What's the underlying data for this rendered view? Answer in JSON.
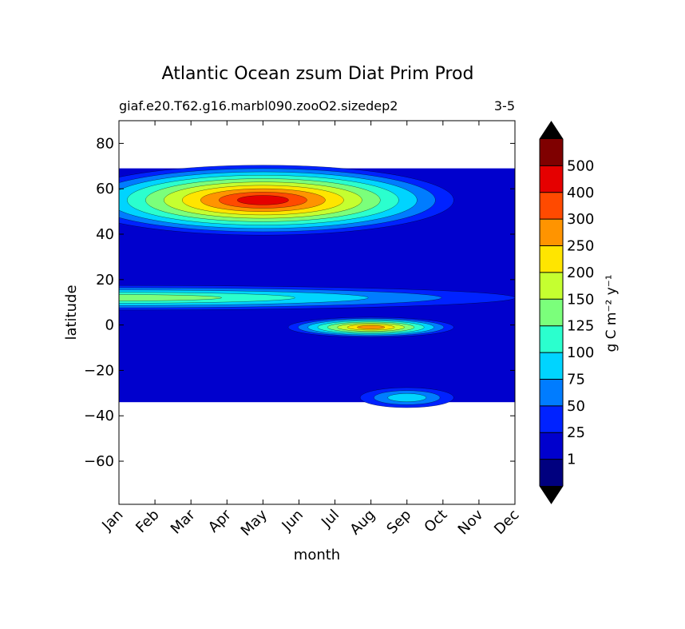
{
  "chart_data": {
    "type": "heatmap",
    "subtype": "filled-contour",
    "title": "Atlantic Ocean zsum Diat Prim Prod",
    "subtitle_left": "giaf.e20.T62.g16.marbl090.zooO2.sizedep2",
    "subtitle_right": "3-5",
    "xlabel": "month",
    "ylabel": "latitude",
    "x_categories": [
      "Jan",
      "Feb",
      "Mar",
      "Apr",
      "May",
      "Jun",
      "Jul",
      "Aug",
      "Sep",
      "Oct",
      "Nov",
      "Dec"
    ],
    "ylim": [
      -79,
      90
    ],
    "yticks": [
      80,
      60,
      40,
      20,
      0,
      -20,
      -40,
      -60
    ],
    "ytick_labels": [
      "80",
      "60",
      "40",
      "20",
      "0",
      "−20",
      "−40",
      "−60"
    ],
    "data_lat_range": [
      -34,
      69
    ],
    "grid": false,
    "colorbar": {
      "label": "g C m⁻² y⁻¹",
      "tick_labels": [
        "1",
        "25",
        "50",
        "75",
        "100",
        "125",
        "150",
        "200",
        "250",
        "300",
        "400",
        "500"
      ],
      "colors": [
        "#00007f",
        "#0000cd",
        "#0022ff",
        "#007cff",
        "#00d4ff",
        "#2bffce",
        "#7bff7b",
        "#c5ff30",
        "#ffe500",
        "#ff9400",
        "#ff4a00",
        "#e50000",
        "#7f0000"
      ],
      "extend": "both",
      "extend_colors": [
        "#000000",
        "#000000"
      ]
    },
    "field": {
      "background_level": 1,
      "features": [
        {
          "name": "north-atlantic-spring-bloom",
          "lat_range": [
            40,
            68
          ],
          "months": [
            "Mar",
            "Apr",
            "May",
            "Jun",
            "Jul",
            "Aug",
            "Sep",
            "Oct"
          ],
          "peak_level": 11,
          "peak_month": "May",
          "peak_lat": 55
        },
        {
          "name": "equatorial-upwelling",
          "lat_range": [
            -4,
            2
          ],
          "months": [
            "Jun",
            "Jul",
            "Aug",
            "Sep",
            "Oct"
          ],
          "peak_level": 9,
          "peak_month": "Aug",
          "peak_lat": -1
        },
        {
          "name": "tropical-band",
          "lat_range": [
            8,
            16
          ],
          "months": [
            "Jan",
            "Feb",
            "Mar",
            "Dec"
          ],
          "peak_level": 6,
          "peak_month": "Jan",
          "peak_lat": 12
        },
        {
          "name": "southern-subtropical-band",
          "lat_range": [
            -34,
            -28
          ],
          "months": [
            "Aug",
            "Sep",
            "Oct"
          ],
          "peak_level": 4,
          "peak_month": "Sep",
          "peak_lat": -32
        }
      ]
    }
  }
}
